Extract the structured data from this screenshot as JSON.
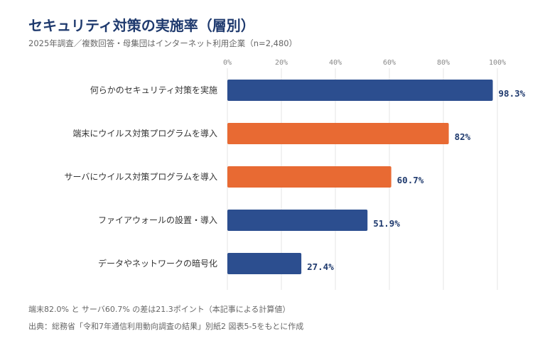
{
  "title": "セキュリティ対策の実施率（層別）",
  "subtitle": "2025年調査／複数回答・母集団はインターネット利用企業（n=2,480）",
  "note": "端末82.0% と サーバ60.7% の差は21.3ポイント（本記事による計算値）",
  "source": "出典：総務省「令和7年通信利用動向調査の結果」別紙2 図表5-5をもとに作成",
  "colors": {
    "navy": "#2c4e8f",
    "orange": "#e86a33",
    "grid": "#e6e6e6"
  },
  "chart_data": {
    "type": "bar",
    "orientation": "horizontal",
    "categories": [
      "何らかのセキュリティ対策を実施",
      "端末にウイルス対策プログラムを導入",
      "サーバにウイルス対策プログラムを導入",
      "ファイアウォールの設置・導入",
      "データやネットワークの暗号化"
    ],
    "values": [
      98.3,
      82,
      60.7,
      51.9,
      27.4
    ],
    "value_labels": [
      "98.3%",
      "82%",
      "60.7%",
      "51.9%",
      "27.4%"
    ],
    "bar_colors": [
      "navy",
      "orange",
      "orange",
      "navy",
      "navy"
    ],
    "xlim": [
      0,
      100
    ],
    "xticks": [
      0,
      20,
      40,
      60,
      80,
      100
    ],
    "xtick_labels": [
      "0%",
      "20%",
      "40%",
      "60%",
      "80%",
      "100%"
    ],
    "grid": true,
    "xaxis_position": "top"
  }
}
